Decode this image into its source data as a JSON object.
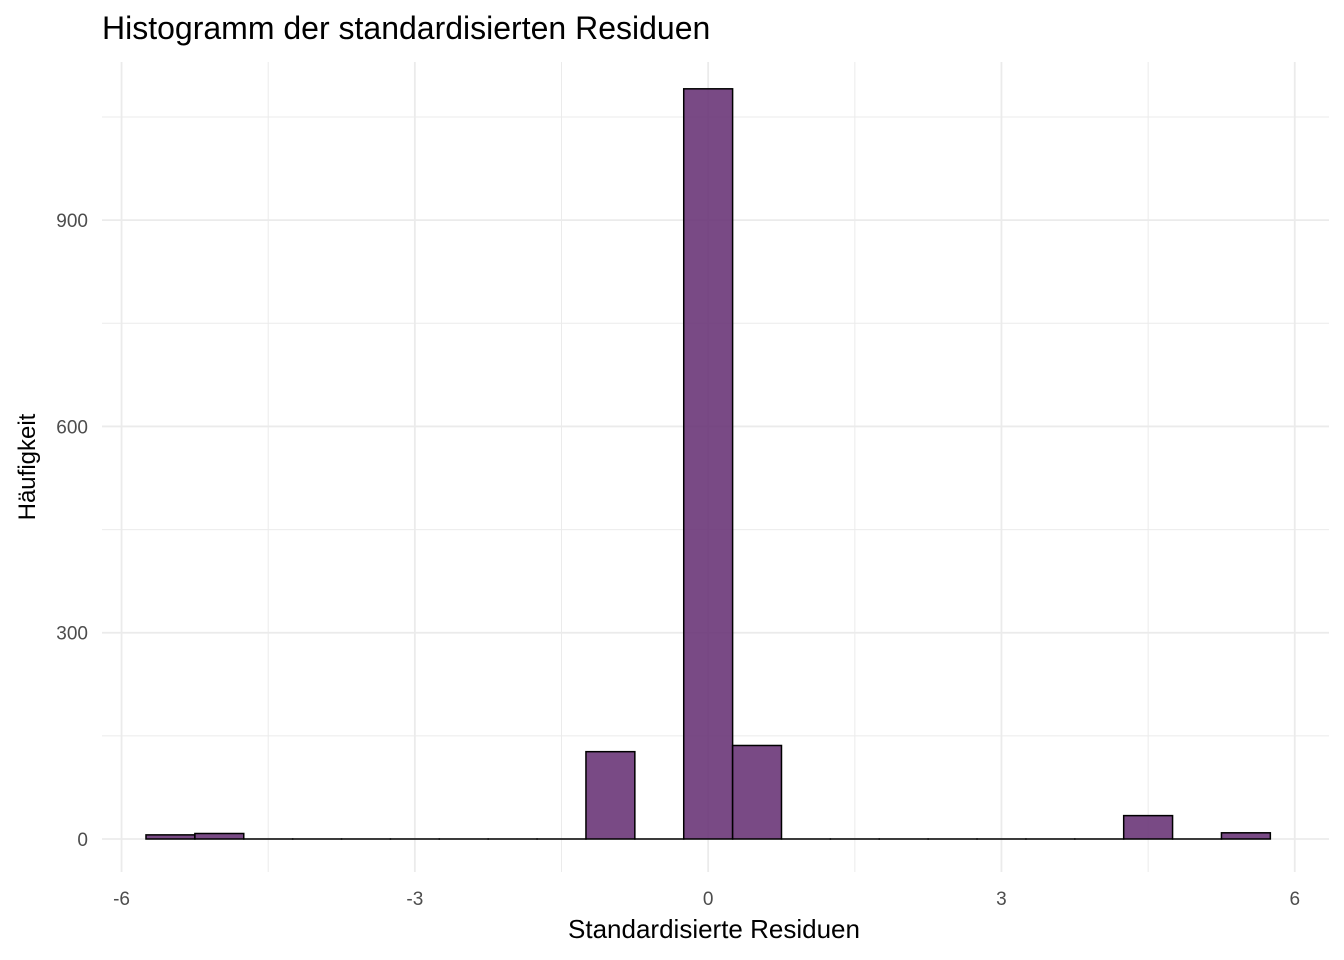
{
  "chart_data": {
    "type": "bar",
    "title": "Histogramm der standardisierten Residuen",
    "xlabel": "Standardisierte Residuen",
    "ylabel": "Häufigkeit",
    "bin_width": 0.5,
    "bins": [
      {
        "x0": -5.75,
        "x1": -5.25,
        "count": 6
      },
      {
        "x0": -5.25,
        "x1": -4.75,
        "count": 8
      },
      {
        "x0": -4.75,
        "x1": -4.25,
        "count": 0
      },
      {
        "x0": -4.25,
        "x1": -3.75,
        "count": 0
      },
      {
        "x0": -3.75,
        "x1": -3.25,
        "count": 0
      },
      {
        "x0": -3.25,
        "x1": -2.75,
        "count": 0
      },
      {
        "x0": -2.75,
        "x1": -2.25,
        "count": 0
      },
      {
        "x0": -2.25,
        "x1": -1.75,
        "count": 0
      },
      {
        "x0": -1.75,
        "x1": -1.25,
        "count": 0
      },
      {
        "x0": -1.25,
        "x1": -0.75,
        "count": 127
      },
      {
        "x0": -0.75,
        "x1": -0.25,
        "count": 0
      },
      {
        "x0": -0.25,
        "x1": 0.25,
        "count": 1091
      },
      {
        "x0": 0.25,
        "x1": 0.75,
        "count": 136
      },
      {
        "x0": 0.75,
        "x1": 1.25,
        "count": 0
      },
      {
        "x0": 1.25,
        "x1": 1.75,
        "count": 0
      },
      {
        "x0": 1.75,
        "x1": 2.25,
        "count": 0
      },
      {
        "x0": 2.25,
        "x1": 2.75,
        "count": 0
      },
      {
        "x0": 2.75,
        "x1": 3.25,
        "count": 0
      },
      {
        "x0": 3.25,
        "x1": 3.75,
        "count": 0
      },
      {
        "x0": 3.75,
        "x1": 4.25,
        "count": 0
      },
      {
        "x0": 4.25,
        "x1": 4.75,
        "count": 34
      },
      {
        "x0": 4.75,
        "x1": 5.25,
        "count": 0
      },
      {
        "x0": 5.25,
        "x1": 5.75,
        "count": 9
      }
    ],
    "xlim": [
      -6.2,
      6.35
    ],
    "ylim": [
      -48,
      1130
    ],
    "x_ticks": [
      -6,
      -3,
      0,
      3,
      6
    ],
    "x_tick_labels": [
      "-6",
      "-3",
      "0",
      "3",
      "6"
    ],
    "y_ticks": [
      0,
      300,
      600,
      900
    ],
    "y_tick_labels": [
      "0",
      "300",
      "600",
      "900"
    ],
    "x_minor_ticks": [
      -4.5,
      -1.5,
      1.5,
      4.5
    ],
    "y_minor_ticks": [
      150,
      450,
      750,
      1050
    ],
    "grid": true,
    "colors": {
      "bar_fill": "#6a3678",
      "bar_outline": "#000000",
      "grid": "#ebebeb"
    }
  }
}
